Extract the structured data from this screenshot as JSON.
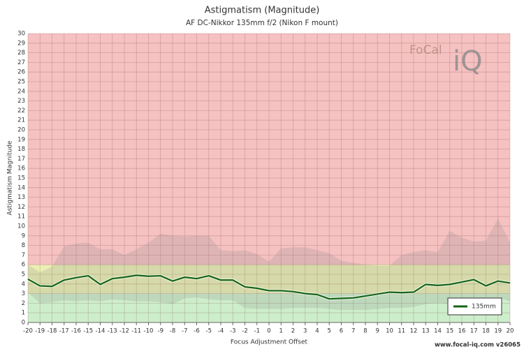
{
  "chart_data": {
    "type": "line",
    "title": "Astigmatism (Magnitude)",
    "subtitle": "AF DC-Nikkor 135mm f/2 (Nikon F mount)",
    "xlabel": "Focus Adjustment Offset",
    "ylabel": "Astigmatism Magnitude",
    "footer": "www.focal-iq.com  v26065",
    "logo": {
      "part1": "FoCal",
      "part2": "iQ"
    },
    "x": [
      -20,
      -19,
      -18,
      -17,
      -16,
      -15,
      -14,
      -13,
      -12,
      -11,
      -10,
      -9,
      -8,
      -7,
      -6,
      -5,
      -4,
      -3,
      -2,
      -1,
      0,
      1,
      2,
      3,
      4,
      5,
      6,
      7,
      8,
      9,
      10,
      11,
      12,
      13,
      14,
      15,
      16,
      17,
      18,
      19,
      20
    ],
    "series": [
      {
        "name": "135mm",
        "color": "#156515",
        "values": [
          4.5,
          3.8,
          3.75,
          4.4,
          4.65,
          4.85,
          3.95,
          4.55,
          4.7,
          4.9,
          4.8,
          4.85,
          4.3,
          4.7,
          4.55,
          4.85,
          4.4,
          4.4,
          3.7,
          3.55,
          3.3,
          3.3,
          3.2,
          3.0,
          2.9,
          2.45,
          2.5,
          2.55,
          2.75,
          2.95,
          3.15,
          3.1,
          3.15,
          3.95,
          3.85,
          3.95,
          4.2,
          4.45,
          3.8,
          4.3,
          4.1
        ]
      }
    ],
    "band": {
      "color": "#808080",
      "upper": [
        6,
        5.2,
        5.8,
        7.9,
        8.2,
        8.3,
        7.6,
        7.6,
        7.0,
        7.6,
        8.3,
        9.2,
        9.0,
        8.9,
        9.0,
        9.0,
        7.5,
        7.4,
        7.5,
        7.1,
        6.3,
        7.7,
        7.8,
        7.8,
        7.5,
        7.2,
        6.4,
        6.2,
        6.0,
        5.9,
        5.9,
        7.0,
        7.3,
        7.5,
        7.3,
        9.5,
        8.8,
        8.4,
        8.5,
        10.8,
        8.3
      ],
      "lower": [
        3.1,
        2.0,
        2.1,
        2.3,
        2.2,
        2.3,
        2.2,
        2.4,
        2.3,
        2.2,
        2.2,
        2.1,
        1.9,
        2.5,
        2.6,
        2.4,
        2.3,
        2.3,
        1.5,
        1.4,
        1.4,
        1.4,
        1.5,
        1.5,
        1.5,
        1.4,
        1.3,
        1.3,
        1.3,
        1.4,
        1.5,
        1.5,
        1.6,
        1.9,
        2.0,
        1.9,
        2.0,
        2.2,
        2.1,
        2.6,
        2.2
      ]
    },
    "zones": [
      {
        "from": 0,
        "to": 3,
        "color": "#cdeecb"
      },
      {
        "from": 3,
        "to": 6,
        "color": "#ebefb3"
      },
      {
        "from": 6,
        "to": 30,
        "color": "#f6c1c1"
      }
    ],
    "xlim": [
      -20,
      20
    ],
    "ylim": [
      0,
      30
    ],
    "xticks": [
      -20,
      -19,
      -18,
      -17,
      -16,
      -15,
      -14,
      -13,
      -12,
      -11,
      -10,
      -9,
      -8,
      -7,
      -6,
      -5,
      -4,
      -3,
      -2,
      -1,
      0,
      1,
      2,
      3,
      4,
      5,
      6,
      7,
      8,
      9,
      10,
      11,
      12,
      13,
      14,
      15,
      16,
      17,
      18,
      19,
      20
    ],
    "yticks": [
      0,
      1,
      2,
      3,
      4,
      5,
      6,
      7,
      8,
      9,
      10,
      11,
      12,
      13,
      14,
      15,
      16,
      17,
      18,
      19,
      20,
      21,
      22,
      23,
      24,
      25,
      26,
      27,
      28,
      29,
      30
    ],
    "grid": true,
    "legend": "lower-right"
  }
}
